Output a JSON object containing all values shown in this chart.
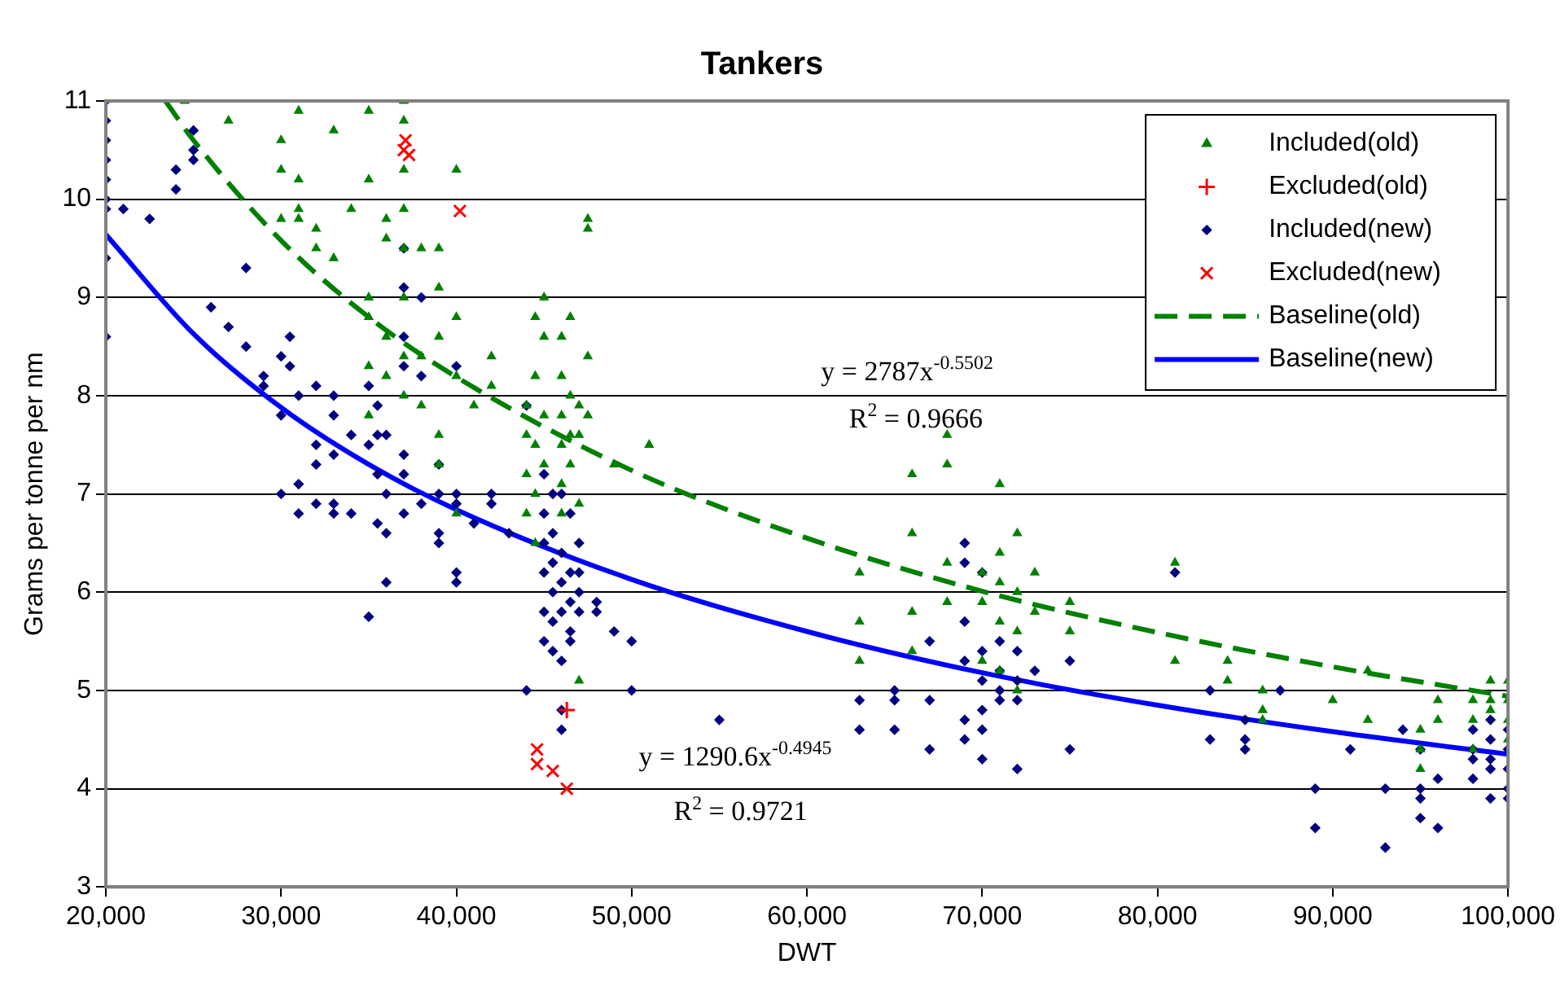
{
  "chart_data": {
    "type": "scatter",
    "title": "Tankers",
    "xlabel": "DWT",
    "ylabel": "Grams per tonne per nm",
    "xlim": [
      20000,
      100000
    ],
    "xticks": [
      {
        "value": 20000,
        "label": "20,000"
      },
      {
        "value": 30000,
        "label": "30,000"
      },
      {
        "value": 40000,
        "label": "40,000"
      },
      {
        "value": 50000,
        "label": "50,000"
      },
      {
        "value": 60000,
        "label": "60,000"
      },
      {
        "value": 70000,
        "label": "70,000"
      },
      {
        "value": 80000,
        "label": "80,000"
      },
      {
        "value": 90000,
        "label": "90,000"
      },
      {
        "value": 100000,
        "label": "100,000"
      }
    ],
    "ylim": [
      3,
      11
    ],
    "yticks": [
      3,
      4,
      5,
      6,
      7,
      8,
      9,
      10,
      11
    ],
    "grid": "y",
    "legend": "top right",
    "annotations": [
      "y = 2787x$^{-0.5502}$",
      "R$^{2}$ = 0.9666",
      "y = 1290.6x$^{-0.4945}$",
      "R$^{2}$ = 0.9721"
    ],
    "series": [
      {
        "name": "Included(old)",
        "marker": "triangle",
        "color": "#008000",
        "x": [
          24500,
          27000,
          30000,
          30000,
          30000,
          31000,
          31000,
          31000,
          31000,
          32000,
          32000,
          33000,
          33000,
          34000,
          35000,
          35000,
          35000,
          35000,
          35000,
          35000,
          36000,
          36000,
          36000,
          36000,
          37000,
          37000,
          37000,
          37000,
          37000,
          37000,
          37000,
          37000,
          38000,
          38000,
          38000,
          39000,
          39000,
          39000,
          39000,
          39000,
          40000,
          40000,
          40000,
          40000,
          41000,
          42000,
          42000,
          44000,
          44000,
          44000,
          44000,
          44500,
          44500,
          44500,
          44500,
          44500,
          45000,
          45000,
          45000,
          45000,
          46000,
          46000,
          46000,
          46000,
          46000,
          46000,
          46500,
          46500,
          46500,
          46500,
          47000,
          47000,
          47000,
          47000,
          47500,
          47500,
          47500,
          47500,
          49000,
          51000,
          63000,
          63000,
          63000,
          66000,
          66000,
          66000,
          66000,
          68000,
          68000,
          68000,
          68000,
          70000,
          70000,
          70000,
          71000,
          71000,
          71000,
          71000,
          71000,
          72000,
          72000,
          72000,
          72000,
          73000,
          73000,
          75000,
          75000,
          81000,
          81000,
          84000,
          84000,
          86000,
          86000,
          86000,
          90000,
          92000,
          92000,
          95000,
          95000,
          95000,
          96000,
          96000,
          98000,
          98000,
          98000,
          99000,
          99000,
          99000,
          100000,
          100000,
          100000,
          100000
        ],
        "values": [
          11,
          10.8,
          10.6,
          10.3,
          9.8,
          10.9,
          10.2,
          9.9,
          9.8,
          9.7,
          9.5,
          10.7,
          9.4,
          9.9,
          10.9,
          10.2,
          9.0,
          8.8,
          8.3,
          7.8,
          9.8,
          9.6,
          8.6,
          8.2,
          11,
          10.8,
          10.3,
          9.9,
          9.5,
          9.0,
          8.4,
          8.0,
          9.5,
          8.4,
          7.9,
          9.5,
          9.1,
          8.6,
          7.6,
          7.3,
          10.3,
          8.8,
          8.2,
          6.8,
          7.9,
          8.4,
          8.1,
          7.9,
          7.6,
          7.2,
          6.8,
          8.8,
          8.2,
          7.5,
          7.0,
          6.5,
          9.0,
          8.6,
          7.8,
          7.3,
          8.6,
          8.2,
          7.8,
          7.5,
          7.1,
          6.8,
          8.8,
          8.0,
          7.6,
          7.3,
          7.9,
          7.6,
          6.9,
          5.1,
          9.8,
          9.7,
          8.4,
          7.8,
          7.3,
          7.5,
          6.2,
          5.7,
          5.3,
          7.2,
          6.6,
          5.8,
          5.4,
          7.6,
          7.3,
          6.3,
          5.9,
          6.2,
          5.9,
          5.3,
          7.1,
          6.4,
          6.1,
          5.7,
          5.2,
          6.6,
          6.0,
          5.6,
          5.0,
          6.2,
          5.8,
          5.9,
          5.6,
          6.3,
          5.3,
          5.3,
          5.1,
          5.0,
          4.8,
          4.7,
          4.9,
          5.2,
          4.7,
          4.6,
          4.4,
          4.2,
          4.9,
          4.7,
          4.9,
          4.7,
          4.4,
          5.1,
          4.9,
          4.8,
          5.1,
          4.9,
          4.7,
          4.5
        ]
      },
      {
        "name": "Excluded(old)",
        "marker": "cross",
        "color": "#ff0000",
        "x": [
          46300
        ],
        "values": [
          4.8
        ]
      },
      {
        "name": "Included(new)",
        "marker": "diamond",
        "color": "#000080",
        "x": [
          20000,
          20000,
          20000,
          20000,
          20000,
          20000,
          20000,
          20000,
          20000,
          21000,
          22500,
          24000,
          24000,
          25000,
          25000,
          25000,
          26000,
          27000,
          28000,
          28000,
          29000,
          29000,
          30000,
          30000,
          30000,
          30500,
          30500,
          31000,
          31000,
          31000,
          32000,
          32000,
          32000,
          32000,
          33000,
          33000,
          33000,
          33000,
          33000,
          34000,
          34000,
          35000,
          35000,
          35000,
          35500,
          35500,
          35500,
          35500,
          36000,
          36000,
          36000,
          36000,
          37000,
          37000,
          37000,
          37000,
          37000,
          37000,
          37000,
          38000,
          38000,
          38000,
          39000,
          39000,
          39000,
          39000,
          40000,
          40000,
          40000,
          40000,
          40000,
          41000,
          42000,
          42000,
          43000,
          44000,
          44000,
          45000,
          45000,
          45000,
          45000,
          45000,
          45000,
          45500,
          45500,
          45500,
          45500,
          45500,
          45500,
          46000,
          46000,
          46000,
          46000,
          46000,
          46000,
          46000,
          46500,
          46500,
          46500,
          46500,
          46500,
          47000,
          47000,
          47000,
          47000,
          48000,
          48000,
          49000,
          50000,
          50000,
          55000,
          63000,
          63000,
          65000,
          65000,
          65000,
          67000,
          67000,
          67000,
          69000,
          69000,
          69000,
          69000,
          69000,
          69000,
          70000,
          70000,
          70000,
          70000,
          70000,
          70000,
          71000,
          71000,
          71000,
          71000,
          72000,
          72000,
          72000,
          72000,
          73000,
          75000,
          75000,
          81000,
          83000,
          83000,
          85000,
          85000,
          85000,
          87000,
          89000,
          89000,
          91000,
          93000,
          93000,
          94000,
          95000,
          95000,
          95000,
          95000,
          96000,
          96000,
          98000,
          98000,
          98000,
          98000,
          99000,
          99000,
          99000,
          99000,
          99000,
          100000,
          100000,
          100000,
          100000,
          100000
        ],
        "values": [
          11,
          10.8,
          10.6,
          10.4,
          10.2,
          10.0,
          9.9,
          9.4,
          8.6,
          9.9,
          9.8,
          10.3,
          10.1,
          10.7,
          10.5,
          10.4,
          8.9,
          8.7,
          9.3,
          8.5,
          8.2,
          8.1,
          8.4,
          7.8,
          7.0,
          8.3,
          8.6,
          8.0,
          7.1,
          6.8,
          8.1,
          7.5,
          7.3,
          6.9,
          8.0,
          7.8,
          7.4,
          6.9,
          6.8,
          7.6,
          6.8,
          8.1,
          7.5,
          5.75,
          7.9,
          7.6,
          7.2,
          6.7,
          7.6,
          7.0,
          6.6,
          6.1,
          9.5,
          9.1,
          8.6,
          8.3,
          7.4,
          7.2,
          6.8,
          9.0,
          8.2,
          6.9,
          7.3,
          7.0,
          6.6,
          6.5,
          8.3,
          7.0,
          6.9,
          6.2,
          6.1,
          6.7,
          7.0,
          6.9,
          6.6,
          7.9,
          5.0,
          7.2,
          6.8,
          6.5,
          6.2,
          5.8,
          5.5,
          7.0,
          6.6,
          6.3,
          6.0,
          5.7,
          5.4,
          7.0,
          6.4,
          6.1,
          5.8,
          5.3,
          4.8,
          4.6,
          6.8,
          6.2,
          5.9,
          5.6,
          5.5,
          6.5,
          6.2,
          5.8,
          6.0,
          5.9,
          5.8,
          5.6,
          5.5,
          5.0,
          4.7,
          4.9,
          4.6,
          5.0,
          4.9,
          4.6,
          5.5,
          4.9,
          4.4,
          6.5,
          6.3,
          5.7,
          5.3,
          4.7,
          4.5,
          6.2,
          5.4,
          5.1,
          4.8,
          4.6,
          4.3,
          5.5,
          5.2,
          5.0,
          4.9,
          5.4,
          5.1,
          4.9,
          4.2,
          5.2,
          5.3,
          4.4,
          6.2,
          5.0,
          4.5,
          4.7,
          4.5,
          4.4,
          5.0,
          4.0,
          3.6,
          4.4,
          4.0,
          3.4,
          4.6,
          4.4,
          4.0,
          3.9,
          3.7,
          4.1,
          3.6,
          4.6,
          4.4,
          4.3,
          4.1,
          4.7,
          4.5,
          4.3,
          4.2,
          3.9,
          4.6,
          4.4,
          4.2,
          4.0,
          3.9
        ]
      },
      {
        "name": "Excluded(new)",
        "marker": "cross_rot",
        "color": "#ff0000",
        "x": [
          37000,
          37100,
          37300,
          40200,
          44600,
          44600,
          45500,
          46300
        ],
        "values": [
          10.5,
          10.6,
          10.45,
          9.88,
          4.4,
          4.25,
          4.18,
          4.0
        ]
      },
      {
        "name": "Baseline(old)",
        "type": "line",
        "line_style": "dashed",
        "color": "#008000",
        "x": [
          23400,
          25000,
          30000,
          35000,
          40000,
          50000,
          60000,
          70000,
          80000,
          90000,
          100000
        ],
        "values": [
          11,
          10.6,
          9.58,
          8.8,
          8.19,
          7.24,
          6.55,
          6.01,
          5.59,
          5.24,
          4.94
        ]
      },
      {
        "name": "Baseline(new)",
        "type": "line",
        "line_style": "solid",
        "color": "#0000ff",
        "x": [
          20000,
          25000,
          30000,
          35000,
          40000,
          50000,
          60000,
          70000,
          80000,
          90000,
          100000
        ],
        "values": [
          9.64,
          8.63,
          7.88,
          7.3,
          6.84,
          6.13,
          5.6,
          5.18,
          4.85,
          4.58,
          4.35
        ]
      }
    ]
  }
}
